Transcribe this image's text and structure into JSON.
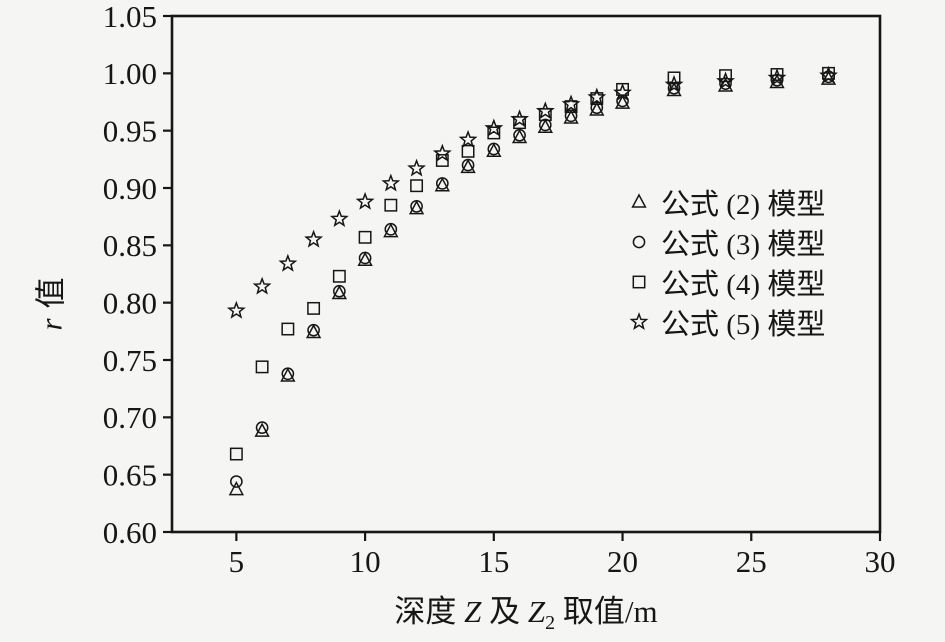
{
  "figure": {
    "background_color": "#f5f5f3",
    "axis_color": "#161616"
  },
  "y_axis_title": {
    "italic": "r",
    "rest": "值"
  },
  "x_axis_title": {
    "t1": "深度 ",
    "z1": "Z",
    "t2": " 及 ",
    "z2": "Z",
    "sub": "2",
    "t3": " 取值/m"
  },
  "chart_data": {
    "type": "scatter",
    "title": "",
    "xlabel": "深度 Z 及 Z2 取值/m",
    "ylabel": "r 值",
    "xlim": [
      2.5,
      30
    ],
    "ylim": [
      0.6,
      1.05
    ],
    "x_ticks": [
      5,
      10,
      15,
      20,
      25,
      30
    ],
    "y_tick_labels": [
      "0.60",
      "0.65",
      "0.70",
      "0.75",
      "0.80",
      "0.85",
      "0.90",
      "0.95",
      "1.00",
      "1.05"
    ],
    "y_tick_values": [
      0.6,
      0.65,
      0.7,
      0.75,
      0.8,
      0.85,
      0.9,
      0.95,
      1.0,
      1.05
    ],
    "grid": false,
    "legend_position": "center-right",
    "x": [
      5,
      6,
      7,
      8,
      9,
      10,
      11,
      12,
      13,
      14,
      15,
      16,
      17,
      18,
      19,
      20,
      22,
      24,
      26,
      28
    ],
    "series": [
      {
        "name": "公式 (2) 模型",
        "marker": "triangle",
        "values": [
          0.637,
          0.688,
          0.736,
          0.774,
          0.808,
          0.837,
          0.862,
          0.882,
          0.902,
          0.918,
          0.932,
          0.944,
          0.953,
          0.961,
          0.968,
          0.974,
          0.985,
          0.989,
          0.992,
          0.995
        ]
      },
      {
        "name": "公式 (3) 模型",
        "marker": "circle",
        "values": [
          0.644,
          0.691,
          0.738,
          0.776,
          0.81,
          0.839,
          0.864,
          0.884,
          0.904,
          0.92,
          0.934,
          0.946,
          0.955,
          0.963,
          0.97,
          0.976,
          0.987,
          0.991,
          0.994,
          0.997
        ]
      },
      {
        "name": "公式 (4) 模型",
        "marker": "square",
        "values": [
          0.668,
          0.744,
          0.777,
          0.795,
          0.823,
          0.857,
          0.885,
          0.902,
          0.924,
          0.932,
          0.948,
          0.957,
          0.964,
          0.971,
          0.978,
          0.986,
          0.996,
          0.998,
          0.999,
          1.0
        ]
      },
      {
        "name": "公式 (5) 模型",
        "marker": "star",
        "values": [
          0.793,
          0.814,
          0.834,
          0.855,
          0.873,
          0.888,
          0.904,
          0.917,
          0.93,
          0.942,
          0.952,
          0.96,
          0.967,
          0.973,
          0.979,
          0.983,
          0.99,
          0.993,
          0.996,
          0.998
        ]
      }
    ]
  }
}
